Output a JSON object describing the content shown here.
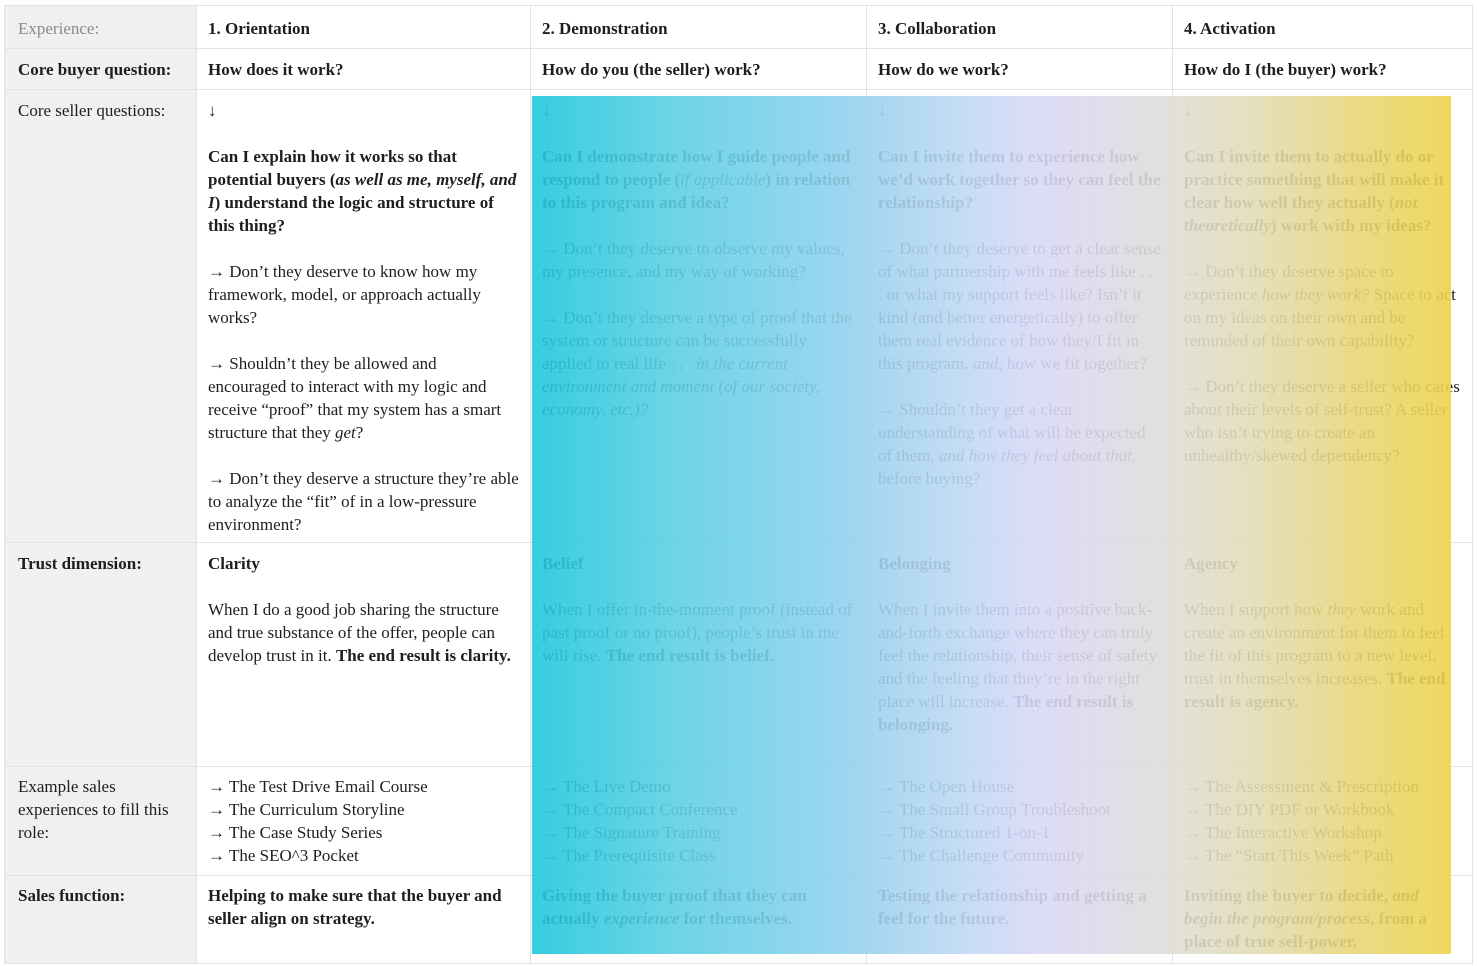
{
  "row_labels": {
    "experience": "Experience:",
    "buyer_question": "Core buyer question:",
    "seller_questions": "Core seller questions:",
    "trust": "Trust dimension:",
    "examples": "Example sales experiences to fill this role:",
    "sales_function": "Sales function:"
  },
  "overlay_colors": [
    "#1fc8dc",
    "#94d2ee",
    "#d9d8f7",
    "#e2dcb8",
    "#edd44c"
  ],
  "columns": [
    {
      "title": "1. Orientation",
      "buyer_question": "How does it work?",
      "arrow": "↓",
      "seller": [
        [
          {
            "t": "Can I explain how it works so that potential buyers (",
            "s": "b"
          },
          {
            "t": "as well as me, myself, and I",
            "s": "b i"
          },
          {
            "t": ") understand the logic and structure of this thing?",
            "s": "b"
          }
        ],
        [
          {
            "t": "→ Don’t they deserve to know how my framework, model, or approach actually works?",
            "s": ""
          }
        ],
        [
          {
            "t": "→ Shouldn’t they be allowed and encouraged to interact with my logic and receive “proof” that my system has a smart structure that they ",
            "s": ""
          },
          {
            "t": "get",
            "s": "i"
          },
          {
            "t": "?",
            "s": ""
          }
        ],
        [
          {
            "t": "→ Don’t they deserve a structure they’re able to analyze the “fit” of in a low-pressure environment?",
            "s": ""
          }
        ]
      ],
      "trust_name": "Clarity",
      "trust_text": [
        {
          "t": "When I do a good job sharing the structure and true substance of the offer, people can develop trust in it. ",
          "s": ""
        },
        {
          "t": "The end result is clarity.",
          "s": "b"
        }
      ],
      "examples": [
        "→ The Test Drive Email Course",
        "→ The Curriculum Storyline",
        "→ The Case Study Series",
        "→ The SEO^3 Pocket"
      ],
      "sales_function": [
        {
          "t": "Helping to make sure that the buyer and seller align on strategy.",
          "s": "b"
        }
      ]
    },
    {
      "title": "2. Demonstration",
      "buyer_question": "How do you (the seller) work?",
      "arrow": "↓",
      "seller": [
        [
          {
            "t": "Can I demonstrate how I guide people and respond to people (",
            "s": "b"
          },
          {
            "t": "if applicable",
            "s": "i"
          },
          {
            "t": ") in relation to this program and idea?",
            "s": "b"
          }
        ],
        [
          {
            "t": "→ Don’t they deserve to observe my values, my presence, and my way of working?",
            "s": ""
          }
        ],
        [
          {
            "t": "→ Don’t they deserve a type of proof that the system or structure can be successfully applied to real life . . . ",
            "s": ""
          },
          {
            "t": "in the current environment and moment (of our society, economy, etc.)?",
            "s": "i"
          }
        ]
      ],
      "trust_name": "Belief",
      "trust_text": [
        {
          "t": "When I offer in-the-moment proof (instead of past proof or no proof), people’s trust in me will rise. ",
          "s": ""
        },
        {
          "t": "The end result is belief.",
          "s": "b"
        }
      ],
      "examples": [
        "→ The Live Demo",
        "→ The Compact Conference",
        "→ The Signature Training",
        "→ The Prerequisite Class"
      ],
      "sales_function": [
        {
          "t": "Giving the buyer proof that they can actually ",
          "s": "b"
        },
        {
          "t": "experience",
          "s": "b i"
        },
        {
          "t": " for themselves.",
          "s": "b"
        }
      ]
    },
    {
      "title": "3. Collaboration",
      "buyer_question": "How do we work?",
      "arrow": "↓",
      "seller": [
        [
          {
            "t": "Can I invite them to experience how we’d work together so they can feel the relationship?",
            "s": "b"
          }
        ],
        [
          {
            "t": "→ Don’t they deserve to get a clear sense of what partnership with me feels like . . . or what my support feels like? Isn’t it kind (and better energetically) to offer them real evidence of  how they/I fit in this program, ",
            "s": ""
          },
          {
            "t": "and",
            "s": "i"
          },
          {
            "t": ", how we fit together?",
            "s": ""
          }
        ],
        [
          {
            "t": "→ Shouldn’t they get a clear understanding of what will be expected of them, ",
            "s": ""
          },
          {
            "t": "and how they feel about that",
            "s": "i"
          },
          {
            "t": ", before buying?",
            "s": ""
          }
        ]
      ],
      "trust_name": "Belonging",
      "trust_text": [
        {
          "t": "When I invite them into a positive back-and-forth exchange where they can truly feel the relationship, their sense of safety and the feeling that they’re in the right place will increase. ",
          "s": ""
        },
        {
          "t": "The end result is belonging.",
          "s": "b"
        }
      ],
      "examples": [
        "→ The Open House",
        "→ The Small Group Troubleshoot",
        "→ The Structured 1-on-1",
        "→ The Challenge Community"
      ],
      "sales_function": [
        {
          "t": "Testing the relationship and getting a feel for the future.",
          "s": "b"
        }
      ]
    },
    {
      "title": "4. Activation",
      "buyer_question": "How do I (the buyer) work?",
      "arrow": "↓",
      "seller": [
        [
          {
            "t": "Can I invite them to actually do or practice something that will make it clear how well they actually (",
            "s": "b"
          },
          {
            "t": "not theoretically",
            "s": "b i"
          },
          {
            "t": ") work with my ideas?",
            "s": "b"
          }
        ],
        [
          {
            "t": "→ Don’t they deserve space to experience ",
            "s": ""
          },
          {
            "t": "how they work?",
            "s": "i"
          },
          {
            "t": " Space to act on my ideas on their own and be reminded of their own capability?",
            "s": ""
          }
        ],
        [
          {
            "t": "→ Don’t they deserve a seller who cares about their levels of self-trust? A seller who isn’t trying to create an unhealthy/skewed dependency?",
            "s": ""
          }
        ]
      ],
      "trust_name": "Agency",
      "trust_text": [
        {
          "t": "When I support how ",
          "s": ""
        },
        {
          "t": "they",
          "s": "i"
        },
        {
          "t": " work and create an environment for them to feel the fit of this program to a new level, trust in themselves increases. ",
          "s": ""
        },
        {
          "t": "The end result is agency.",
          "s": "b"
        }
      ],
      "examples": [
        "→ The Assessment & Prescription",
        "→ The DIY PDF or Workbook",
        "→ The Interactive Workshop",
        "→ The “Start This Week” Path"
      ],
      "sales_function": [
        {
          "t": "Inviting the buyer to decide, ",
          "s": "b"
        },
        {
          "t": "and begin the program/process",
          "s": "b i"
        },
        {
          "t": ", from a place of true self-power.",
          "s": "b"
        }
      ]
    }
  ]
}
